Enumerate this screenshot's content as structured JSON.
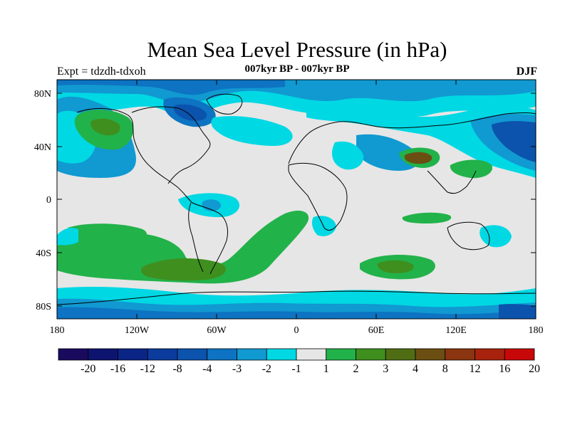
{
  "header": {
    "title": "Mean Sea Level Pressure (in hPa)",
    "subtitle": "007kyr BP - 007kyr BP",
    "left_label": "Expt = tdzdh-tdxoh",
    "right_label": "DJF"
  },
  "map": {
    "lat_ticks": [
      "80N",
      "40N",
      "0",
      "40S",
      "80S"
    ],
    "lon_ticks": [
      "180",
      "120W",
      "60W",
      "0",
      "60E",
      "120E",
      "180"
    ]
  },
  "colorbar": {
    "labels": [
      "-20",
      "-16",
      "-12",
      "-8",
      "-4",
      "-3",
      "-2",
      "-1",
      "1",
      "2",
      "3",
      "4",
      "8",
      "12",
      "16",
      "20"
    ],
    "colors": [
      "#1a0a5e",
      "#0d1470",
      "#0a2585",
      "#0b3b9c",
      "#0b53ad",
      "#0d73c2",
      "#1199d1",
      "#00d8e3",
      "#e6e6e6",
      "#22b24a",
      "#3f8f1f",
      "#4f6e14",
      "#6b4e12",
      "#8a3510",
      "#a8220d",
      "#c80808"
    ]
  },
  "colors": {
    "ocean_neutral": "#e6e6e6",
    "cyan": "#00d8e3",
    "light_blue": "#1199d1",
    "mid_blue": "#0d73c2",
    "dark_blue": "#0b53ad",
    "navy": "#0b3b9c",
    "green": "#22b24a",
    "dark_green": "#3f8f1f",
    "olive": "#6b4e12"
  }
}
